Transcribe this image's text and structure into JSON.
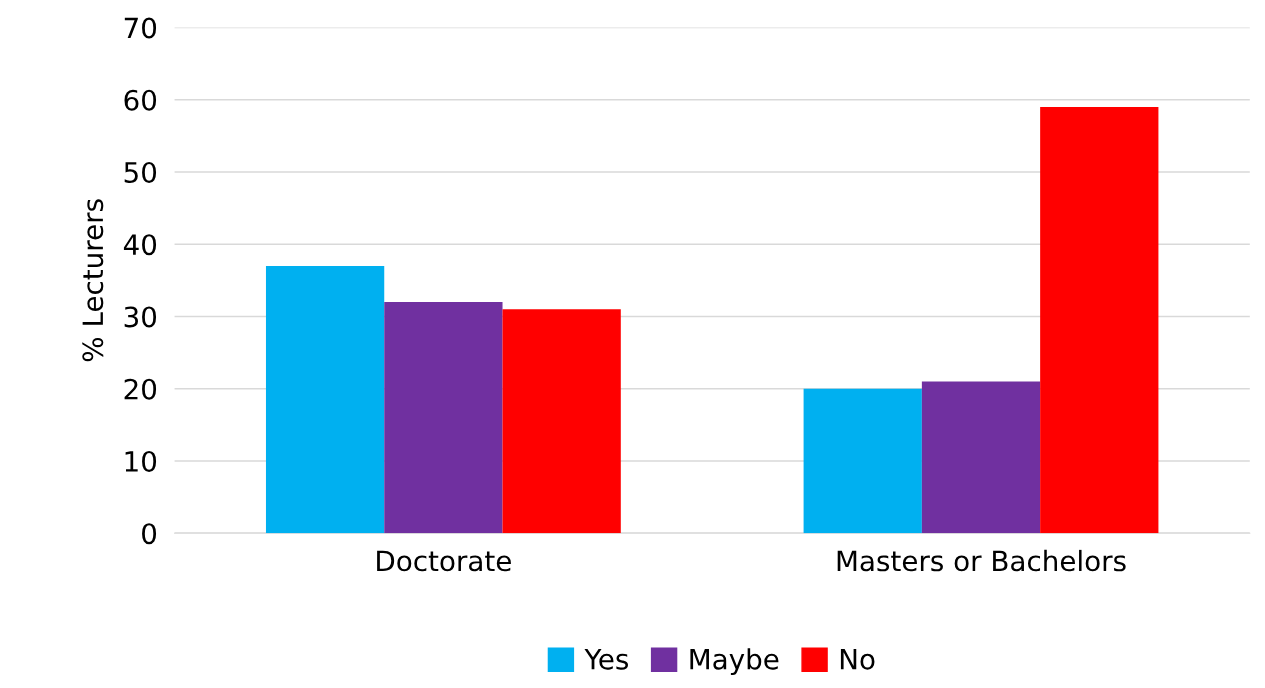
{
  "chart_data": {
    "type": "bar",
    "ylabel": "% Lecturers",
    "categories": [
      "Doctorate",
      "Masters or Bachelors"
    ],
    "series": [
      {
        "name": "Yes",
        "color": "#00b0f0",
        "values": [
          37,
          20
        ]
      },
      {
        "name": "Maybe",
        "color": "#7030a0",
        "values": [
          32,
          21
        ]
      },
      {
        "name": "No",
        "color": "#ff0000",
        "values": [
          31,
          59
        ]
      }
    ],
    "ylim": [
      0,
      70
    ],
    "yticks": [
      0,
      10,
      20,
      30,
      40,
      50,
      60,
      70
    ],
    "grid": "y",
    "legend": "bottom"
  }
}
